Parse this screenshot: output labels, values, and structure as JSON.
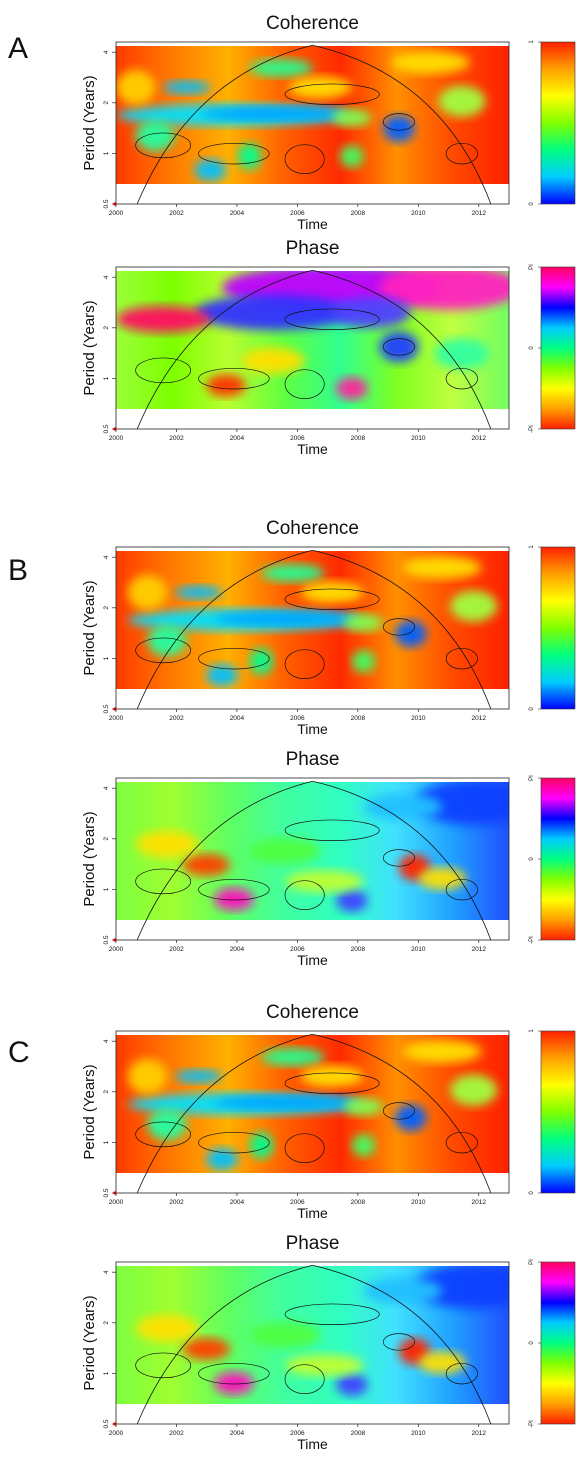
{
  "panels": [
    {
      "letter": "A"
    },
    {
      "letter": "B"
    },
    {
      "letter": "C"
    }
  ],
  "plot_types": [
    "Coherence",
    "Phase"
  ],
  "labels": {
    "coherence_title": "Coherence",
    "phase_title": "Phase",
    "xlabel": "Time",
    "ylabel": "Period (Years)"
  },
  "axes": {
    "x_ticks": [
      "2000",
      "2002",
      "2004",
      "2006",
      "2008",
      "2010",
      "2012"
    ],
    "x_tick_values": [
      2000,
      2002,
      2004,
      2006,
      2008,
      2010,
      2012
    ],
    "xlim": [
      2000,
      2013
    ],
    "y_ticks": [
      "0.5",
      "1",
      "2",
      "4"
    ],
    "y_tick_values": [
      0.5,
      1,
      2,
      4
    ],
    "y_scale": "log2",
    "ylim": [
      0.5,
      4.6
    ]
  },
  "colorbars": {
    "coherence": {
      "ticks": [
        "0",
        "1"
      ],
      "range": [
        0,
        1
      ],
      "colors": [
        "#0000ff",
        "#00ccff",
        "#00ff80",
        "#80ff00",
        "#ffff00",
        "#ffa000",
        "#ff2000"
      ]
    },
    "phase": {
      "ticks": [
        "-PI",
        "0",
        "PI"
      ],
      "range": [
        "-PI",
        "PI"
      ],
      "colors": [
        "#ff2000",
        "#ffa000",
        "#ffff00",
        "#80ff00",
        "#00ff80",
        "#00ccff",
        "#0000ff",
        "#ff00ff",
        "#ff0060"
      ]
    }
  },
  "chart_data": [
    {
      "type": "heatmap",
      "panel": "A",
      "title": "Coherence",
      "xlabel": "Time",
      "ylabel": "Period (Years)",
      "xlim": [
        2000,
        2013
      ],
      "ylim": [
        0.5,
        4.6
      ],
      "yscale": "log2",
      "z_range": [
        0,
        1
      ],
      "cone_of_influence_peak": [
        2006.5,
        4.4
      ],
      "grid": false
    },
    {
      "type": "heatmap",
      "panel": "A",
      "title": "Phase",
      "xlabel": "Time",
      "ylabel": "Period (Years)",
      "xlim": [
        2000,
        2013
      ],
      "ylim": [
        0.5,
        4.6
      ],
      "yscale": "log2",
      "z_range": [
        "-PI",
        "PI"
      ],
      "cone_of_influence_peak": [
        2006.5,
        4.4
      ],
      "grid": false
    },
    {
      "type": "heatmap",
      "panel": "B",
      "title": "Coherence",
      "xlabel": "Time",
      "ylabel": "Period (Years)",
      "xlim": [
        2000,
        2013
      ],
      "ylim": [
        0.5,
        4.6
      ],
      "yscale": "log2",
      "z_range": [
        0,
        1
      ],
      "cone_of_influence_peak": [
        2006.5,
        4.4
      ],
      "grid": false
    },
    {
      "type": "heatmap",
      "panel": "B",
      "title": "Phase",
      "xlabel": "Time",
      "ylabel": "Period (Years)",
      "xlim": [
        2000,
        2013
      ],
      "ylim": [
        0.5,
        4.6
      ],
      "yscale": "log2",
      "z_range": [
        "-PI",
        "PI"
      ],
      "cone_of_influence_peak": [
        2006.5,
        4.4
      ],
      "grid": false
    },
    {
      "type": "heatmap",
      "panel": "C",
      "title": "Coherence",
      "xlabel": "Time",
      "ylabel": "Period (Years)",
      "xlim": [
        2000,
        2013
      ],
      "ylim": [
        0.5,
        4.6
      ],
      "yscale": "log2",
      "z_range": [
        0,
        1
      ],
      "cone_of_influence_peak": [
        2006.5,
        4.4
      ],
      "grid": false
    },
    {
      "type": "heatmap",
      "panel": "C",
      "title": "Phase",
      "xlabel": "Time",
      "ylabel": "Period (Years)",
      "xlim": [
        2000,
        2013
      ],
      "ylim": [
        0.5,
        4.6
      ],
      "yscale": "log2",
      "z_range": [
        "-PI",
        "PI"
      ],
      "cone_of_influence_peak": [
        2006.5,
        4.4
      ],
      "grid": false
    }
  ]
}
